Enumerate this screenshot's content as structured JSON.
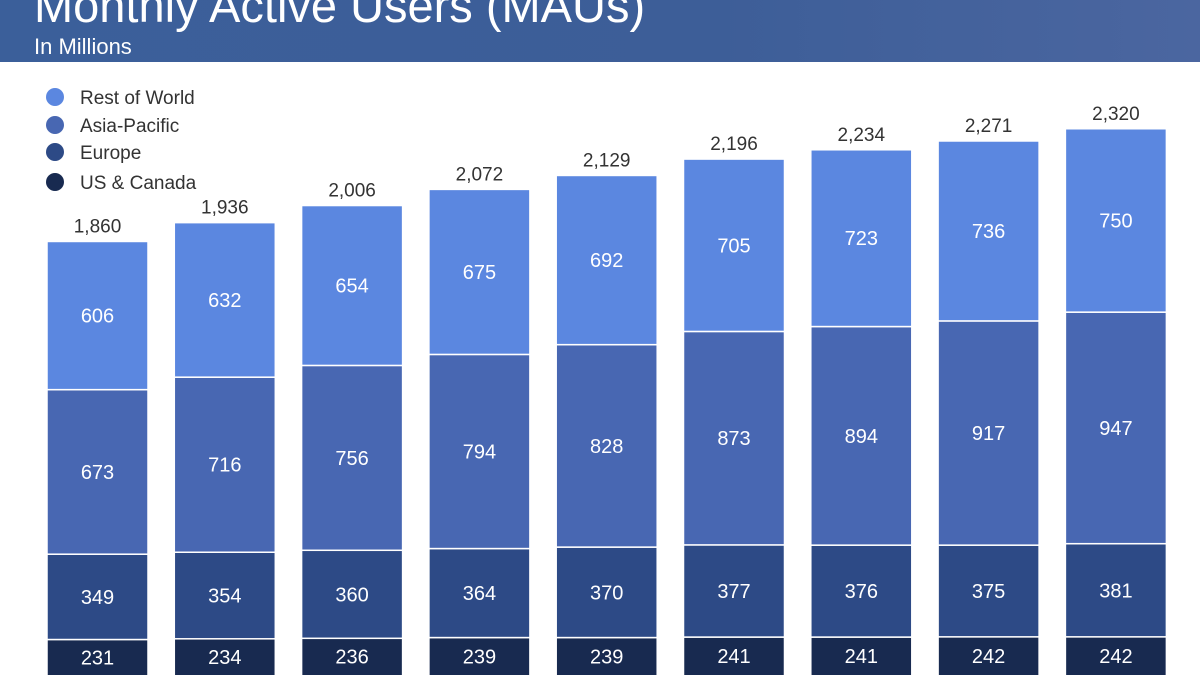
{
  "header": {
    "title": "Monthly Active Users (MAUs)",
    "subtitle": "In Millions"
  },
  "colors": {
    "rest_of_world": "#5b87e0",
    "asia_pacific": "#4867b2",
    "europe": "#2d4a86",
    "us_canada": "#182a50"
  },
  "chart_data": {
    "type": "bar",
    "stacked": true,
    "title": "Monthly Active Users (MAUs)",
    "subtitle": "In Millions",
    "categories": [
      "",
      "",
      "",
      "",
      "",
      "",
      "",
      "",
      ""
    ],
    "series": [
      {
        "name": "US & Canada",
        "color": "#182a50",
        "values": [
          231,
          234,
          236,
          239,
          239,
          241,
          241,
          242,
          242
        ]
      },
      {
        "name": "Europe",
        "color": "#2d4a86",
        "values": [
          349,
          354,
          360,
          364,
          370,
          377,
          376,
          375,
          381
        ]
      },
      {
        "name": "Asia-Pacific",
        "color": "#4867b2",
        "values": [
          673,
          716,
          756,
          794,
          828,
          873,
          894,
          917,
          947
        ]
      },
      {
        "name": "Rest of World",
        "color": "#5b87e0",
        "values": [
          606,
          632,
          654,
          675,
          692,
          705,
          723,
          736,
          750
        ]
      }
    ],
    "totals": [
      "1,860",
      "1,936",
      "2,006",
      "2,072",
      "2,129",
      "2,196",
      "2,234",
      "2,271",
      "2,320"
    ],
    "legend": [
      "Rest of World",
      "Asia-Pacific",
      "Europe",
      "US & Canada"
    ],
    "legend_position": "top-left",
    "grid": false
  }
}
